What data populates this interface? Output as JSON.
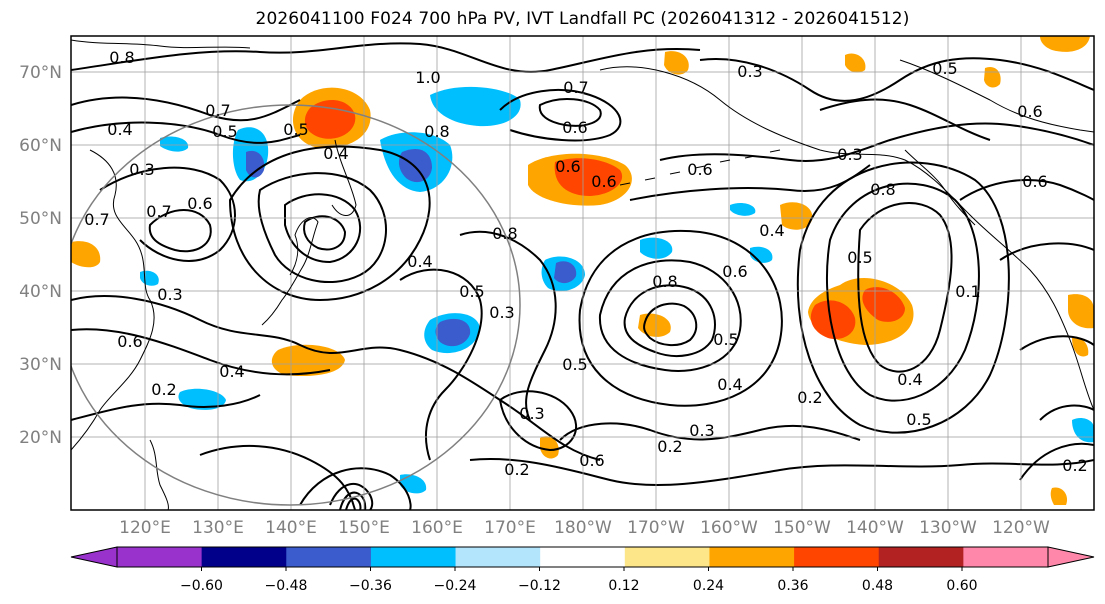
{
  "title": "2026041100 F024 700 hPa PV, IVT Landfall PC (2026041312 - 2026041512)",
  "lat_labels": [
    "70°N",
    "60°N",
    "50°N",
    "40°N",
    "30°N",
    "20°N"
  ],
  "lon_labels": [
    "120°E",
    "130°E",
    "140°E",
    "150°E",
    "160°E",
    "170°E",
    "180°W",
    "170°W",
    "160°W",
    "150°W",
    "140°W",
    "130°W",
    "120°W"
  ],
  "contour_labels": [
    "0.8",
    "1.0",
    "0.7",
    "0.7",
    "0.5",
    "0.4",
    "0.5",
    "0.8",
    "0.4",
    "0.6",
    "0.3",
    "0.6",
    "0.6",
    "0.7",
    "0.7",
    "0.6",
    "0.6",
    "0.4",
    "0.4",
    "0.8",
    "0.3",
    "0.5",
    "0.5",
    "0.3",
    "0.3",
    "0.6",
    "0.4",
    "0.2",
    "0.2",
    "0.3",
    "0.2",
    "0.8",
    "0.5",
    "0.4",
    "0.8",
    "0.6",
    "0.6",
    "0.5",
    "0.4",
    "0.5",
    "0.1",
    "0.2",
    "0.6",
    "0.3",
    "0.3",
    "0.5",
    "0.2",
    "0.6"
  ],
  "colorbar": {
    "colors": [
      "#9932cc",
      "#00008b",
      "#3a5ccc",
      "#00bfff",
      "#b3e5fc",
      "#ffffff",
      "#fde68a",
      "#ffa500",
      "#ff4500",
      "#b22222",
      "#ff88aa"
    ],
    "tick_labels": [
      "−0.60",
      "−0.48",
      "−0.36",
      "−0.24",
      "−0.12",
      "0.12",
      "0.24",
      "0.36",
      "0.48",
      "0.60"
    ]
  }
}
